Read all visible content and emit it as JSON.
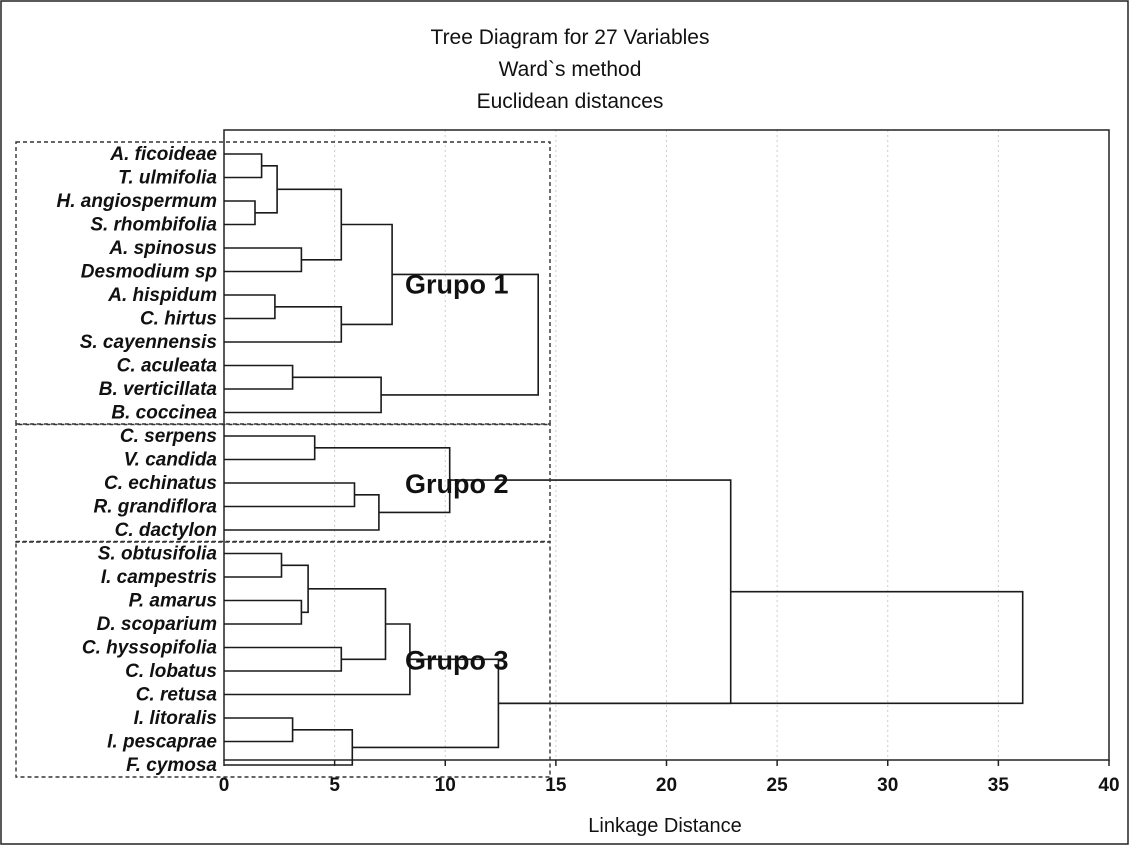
{
  "chart_data": {
    "type": "dendrogram",
    "title": [
      "Tree Diagram for 27  Variables",
      "Ward`s method",
      "Euclidean distances"
    ],
    "xlabel": "Linkage Distance",
    "xlim": [
      0,
      40
    ],
    "xticks": [
      0,
      5,
      10,
      15,
      20,
      25,
      30,
      35,
      40
    ],
    "grid": true,
    "leaves": [
      "A. ficoideae",
      "T. ulmifolia",
      "H. angiospermum",
      "S. rhombifolia",
      "A. spinosus",
      "Desmodium sp",
      "A. hispidum",
      "C. hirtus",
      "S. cayennensis",
      "C. aculeata",
      "B. verticillata",
      "B. coccinea",
      "C. serpens",
      "V. candida",
      "C. echinatus",
      "R. grandiflora",
      "C. dactylon",
      "S. obtusifolia",
      "I. campestris",
      "P. amarus",
      "D. scoparium",
      "C. hyssopifolia",
      "C. lobatus",
      "C. retusa",
      "I. litoralis",
      "I. pescaprae",
      "F. cymosa"
    ],
    "merges": [
      {
        "a": 2,
        "b": 3,
        "d": 1.4
      },
      {
        "a": 0,
        "b": 1,
        "d": 1.7
      },
      {
        "a": 6,
        "b": 7,
        "d": 2.3
      },
      {
        "a": 28,
        "b": 27,
        "d": 2.4
      },
      {
        "a": 17,
        "b": 18,
        "d": 2.6
      },
      {
        "a": 9,
        "b": 10,
        "d": 3.1
      },
      {
        "a": 24,
        "b": 25,
        "d": 3.1
      },
      {
        "a": 19,
        "b": 20,
        "d": 3.5
      },
      {
        "a": 4,
        "b": 5,
        "d": 3.5
      },
      {
        "a": 31,
        "b": 34,
        "d": 3.8
      },
      {
        "a": 12,
        "b": 13,
        "d": 4.1
      },
      {
        "a": 21,
        "b": 22,
        "d": 5.3
      },
      {
        "a": 30,
        "b": 35,
        "d": 5.3
      },
      {
        "a": 29,
        "b": 8,
        "d": 5.3
      },
      {
        "a": 33,
        "b": 26,
        "d": 5.8
      },
      {
        "a": 14,
        "b": 15,
        "d": 5.9
      },
      {
        "a": 42,
        "b": 16,
        "d": 7.0
      },
      {
        "a": 32,
        "b": 11,
        "d": 7.1
      },
      {
        "a": 36,
        "b": 38,
        "d": 7.3
      },
      {
        "a": 39,
        "b": 40,
        "d": 7.6
      },
      {
        "a": 45,
        "b": 23,
        "d": 8.4
      },
      {
        "a": 37,
        "b": 43,
        "d": 10.2
      },
      {
        "a": 47,
        "b": 41,
        "d": 12.4
      },
      {
        "a": 46,
        "b": 44,
        "d": 14.2
      },
      {
        "a": 49,
        "b": 48,
        "d": 22.9
      },
      {
        "a": 51,
        "b": 49,
        "d": 36.1
      }
    ],
    "groups": [
      {
        "label": "Grupo 1",
        "first_leaf": 0,
        "last_leaf": 11
      },
      {
        "label": "Grupo 2",
        "first_leaf": 12,
        "last_leaf": 16
      },
      {
        "label": "Grupo 3",
        "first_leaf": 17,
        "last_leaf": 26
      }
    ]
  }
}
